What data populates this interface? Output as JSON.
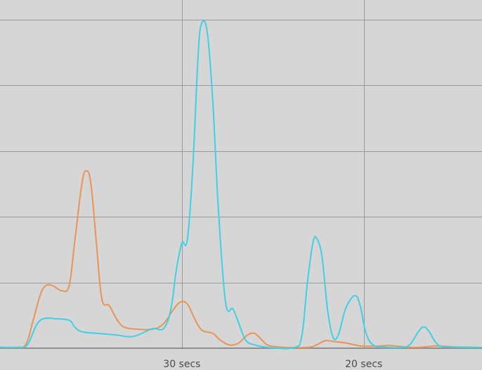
{
  "chart_data": {
    "type": "line",
    "title": "",
    "xlabel": "",
    "ylabel": "",
    "grid": true,
    "legend": "none",
    "x_axis": {
      "unit": "secs",
      "reversed": true,
      "range": [
        40.0,
        13.5
      ],
      "ticks": [
        {
          "value": 30,
          "label": "30 secs"
        },
        {
          "value": 20,
          "label": "20 secs"
        }
      ]
    },
    "y_axis": {
      "range": [
        0,
        100
      ],
      "ticks": [
        0,
        20,
        40,
        60,
        80,
        100
      ],
      "tick_labels_shown": false
    },
    "series": [
      {
        "color": "#e89456",
        "points": [
          [
            40.0,
            0.2
          ],
          [
            39.2,
            0.2
          ],
          [
            38.6,
            1.0
          ],
          [
            38.2,
            8.0
          ],
          [
            37.8,
            16.0
          ],
          [
            37.5,
            19.0
          ],
          [
            37.1,
            19.0
          ],
          [
            36.6,
            17.5
          ],
          [
            36.2,
            19.0
          ],
          [
            35.9,
            32.0
          ],
          [
            35.5,
            50.0
          ],
          [
            35.25,
            54.0
          ],
          [
            35.0,
            50.0
          ],
          [
            34.7,
            32.0
          ],
          [
            34.4,
            15.0
          ],
          [
            34.0,
            13.0
          ],
          [
            33.6,
            9.0
          ],
          [
            33.2,
            6.5
          ],
          [
            32.5,
            5.8
          ],
          [
            31.6,
            5.8
          ],
          [
            31.0,
            7.5
          ],
          [
            30.5,
            11.5
          ],
          [
            30.1,
            14.0
          ],
          [
            29.7,
            13.5
          ],
          [
            29.3,
            9.0
          ],
          [
            28.9,
            5.5
          ],
          [
            28.3,
            4.5
          ],
          [
            27.9,
            2.5
          ],
          [
            27.4,
            1.0
          ],
          [
            26.9,
            1.5
          ],
          [
            26.4,
            4.0
          ],
          [
            26.0,
            4.5
          ],
          [
            25.6,
            2.5
          ],
          [
            25.2,
            0.8
          ],
          [
            24.2,
            0.2
          ],
          [
            23.0,
            0.3
          ],
          [
            22.6,
            1.0
          ],
          [
            22.1,
            2.3
          ],
          [
            21.6,
            2.0
          ],
          [
            21.0,
            1.6
          ],
          [
            20.2,
            0.7
          ],
          [
            19.4,
            0.6
          ],
          [
            18.6,
            0.8
          ],
          [
            17.8,
            0.4
          ],
          [
            17.0,
            0.2
          ],
          [
            16.0,
            0.7
          ],
          [
            15.0,
            0.4
          ],
          [
            13.5,
            0.1
          ]
        ]
      },
      {
        "color": "#3fd0e6",
        "points": [
          [
            40.0,
            0.3
          ],
          [
            39.0,
            0.3
          ],
          [
            38.5,
            1.0
          ],
          [
            38.0,
            7.0
          ],
          [
            37.6,
            9.0
          ],
          [
            37.0,
            9.0
          ],
          [
            36.2,
            8.5
          ],
          [
            35.9,
            6.5
          ],
          [
            35.5,
            5.0
          ],
          [
            34.6,
            4.5
          ],
          [
            33.6,
            4.0
          ],
          [
            32.8,
            3.5
          ],
          [
            32.2,
            4.5
          ],
          [
            31.6,
            6.0
          ],
          [
            31.0,
            6.0
          ],
          [
            30.6,
            12.0
          ],
          [
            30.3,
            24.0
          ],
          [
            30.0,
            32.0
          ],
          [
            29.7,
            33.0
          ],
          [
            29.4,
            55.0
          ],
          [
            29.1,
            90.0
          ],
          [
            28.9,
            99.0
          ],
          [
            28.6,
            96.0
          ],
          [
            28.3,
            75.0
          ],
          [
            28.0,
            43.0
          ],
          [
            27.6,
            14.0
          ],
          [
            27.2,
            12.0
          ],
          [
            26.9,
            8.0
          ],
          [
            26.5,
            2.5
          ],
          [
            26.0,
            1.0
          ],
          [
            25.2,
            0.2
          ],
          [
            23.8,
            0.2
          ],
          [
            23.4,
            4.0
          ],
          [
            23.1,
            20.0
          ],
          [
            22.8,
            32.0
          ],
          [
            22.6,
            33.5
          ],
          [
            22.3,
            28.0
          ],
          [
            22.0,
            12.0
          ],
          [
            21.7,
            3.5
          ],
          [
            21.4,
            4.0
          ],
          [
            21.0,
            12.0
          ],
          [
            20.5,
            16.0
          ],
          [
            20.2,
            13.0
          ],
          [
            19.9,
            5.0
          ],
          [
            19.5,
            1.0
          ],
          [
            18.8,
            0.3
          ],
          [
            17.8,
            0.3
          ],
          [
            17.4,
            1.5
          ],
          [
            17.0,
            5.0
          ],
          [
            16.7,
            6.5
          ],
          [
            16.4,
            5.0
          ],
          [
            16.0,
            1.5
          ],
          [
            15.5,
            0.4
          ],
          [
            13.5,
            0.2
          ]
        ]
      }
    ]
  }
}
